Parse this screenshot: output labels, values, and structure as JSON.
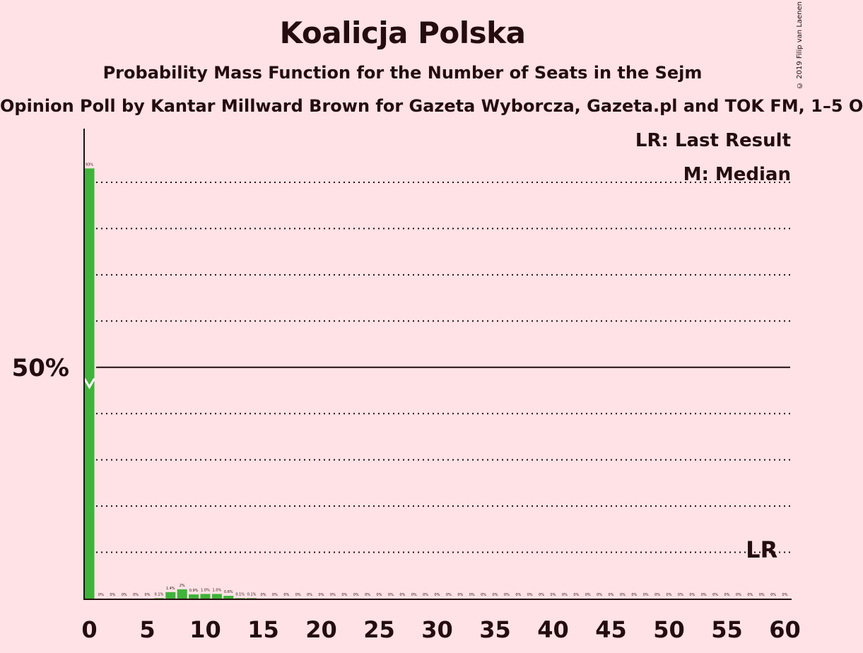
{
  "title": "Koalicja Polska",
  "subtitle": "Probability Mass Function for the Number of Seats in the Sejm",
  "source": "Opinion Poll by Kantar Millward Brown for Gazeta Wyborcza, Gazeta.pl and TOK FM, 1–5 O",
  "copyright": "© 2019 Filip van Laenen",
  "legend": {
    "last_result": "LR: Last Result",
    "median": "M: Median"
  },
  "colors": {
    "background": "#ffe2e6",
    "bar": "#3fb33a",
    "text": "#240c0f"
  },
  "chart_data": {
    "type": "bar",
    "x": [
      0,
      1,
      2,
      3,
      4,
      5,
      6,
      7,
      8,
      9,
      10,
      11,
      12,
      13,
      14,
      15,
      16,
      17,
      18,
      19,
      20,
      21,
      22,
      23,
      24,
      25,
      26,
      27,
      28,
      29,
      30,
      31,
      32,
      33,
      34,
      35,
      36,
      37,
      38,
      39,
      40,
      41,
      42,
      43,
      44,
      45,
      46,
      47,
      48,
      49,
      50,
      51,
      52,
      53,
      54,
      55,
      56,
      57,
      58,
      59,
      60
    ],
    "values": [
      93,
      0,
      0,
      0,
      0,
      0,
      0.1,
      1.4,
      2,
      0.9,
      1.0,
      1.0,
      0.6,
      0.1,
      0.1,
      0,
      0,
      0,
      0,
      0,
      0,
      0,
      0,
      0,
      0,
      0,
      0,
      0,
      0,
      0,
      0,
      0,
      0,
      0,
      0,
      0,
      0,
      0,
      0,
      0,
      0,
      0,
      0,
      0,
      0,
      0,
      0,
      0,
      0,
      0,
      0,
      0,
      0,
      0,
      0,
      0,
      0,
      0,
      0,
      0,
      0
    ],
    "labels": [
      "93%",
      "0%",
      "0%",
      "0%",
      "0%",
      "0%",
      "0.1%",
      "1.4%",
      "2%",
      "0.9%",
      "1.0%",
      "1.0%",
      "0.6%",
      "0.1%",
      "0.1%",
      "0%",
      "0%",
      "0%",
      "0%",
      "0%",
      "0%",
      "0%",
      "0%",
      "0%",
      "0%",
      "0%",
      "0%",
      "0%",
      "0%",
      "0%",
      "0%",
      "0%",
      "0%",
      "0%",
      "0%",
      "0%",
      "0%",
      "0%",
      "0%",
      "0%",
      "0%",
      "0%",
      "0%",
      "0%",
      "0%",
      "0%",
      "0%",
      "0%",
      "0%",
      "0%",
      "0%",
      "0%",
      "0%",
      "0%",
      "0%",
      "0%",
      "0%",
      "0%",
      "0%",
      "0%",
      "0%"
    ],
    "xticks": [
      0,
      5,
      10,
      15,
      20,
      25,
      30,
      35,
      40,
      45,
      50,
      55,
      60
    ],
    "ylim": [
      0,
      100
    ],
    "gridlines": [
      10,
      20,
      30,
      40,
      60,
      70,
      80,
      90
    ],
    "majorline": 50,
    "ytick_label": "50%",
    "median_seat": 0,
    "last_result_seat": 58,
    "last_result_label": "LR"
  }
}
